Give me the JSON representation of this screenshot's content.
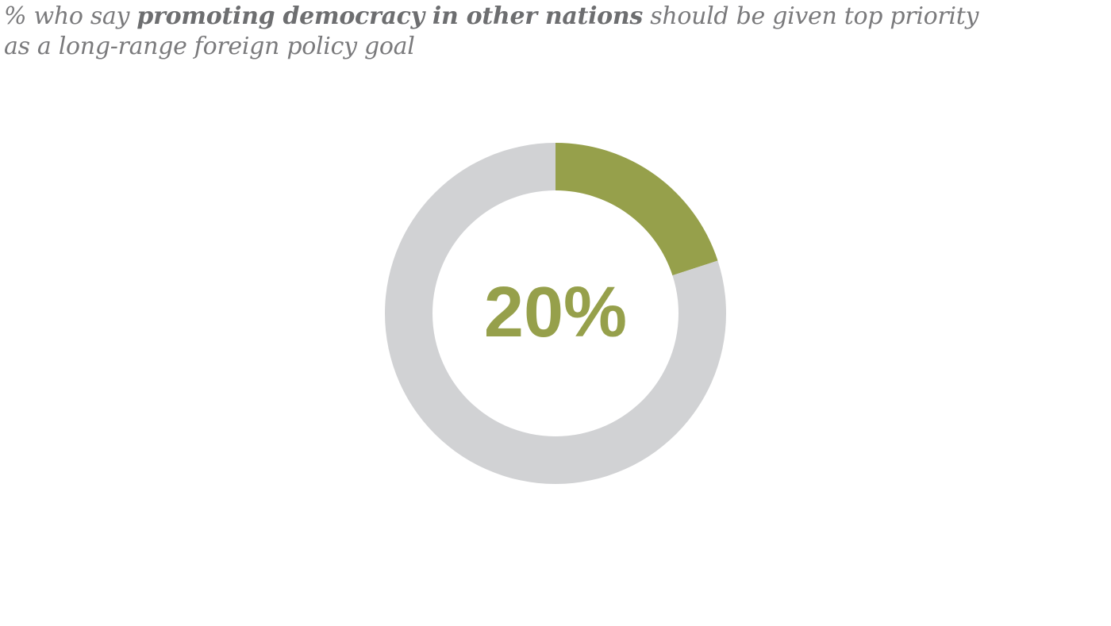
{
  "title": {
    "prefix": "% who say ",
    "highlight": "promoting democracy in other nations",
    "suffix_line1": " should be given top priority",
    "line2": "as a long-range foreign policy goal"
  },
  "colors": {
    "accent": "#96a04b",
    "remainder": "#d1d2d4",
    "title_text": "#7a7a7c"
  },
  "chart_data": {
    "type": "pie",
    "variant": "donut",
    "slices": [
      {
        "value": 20,
        "color": "#96a04b"
      },
      {
        "value": 80,
        "color": "#d1d2d4"
      }
    ],
    "center_label": "20%"
  }
}
